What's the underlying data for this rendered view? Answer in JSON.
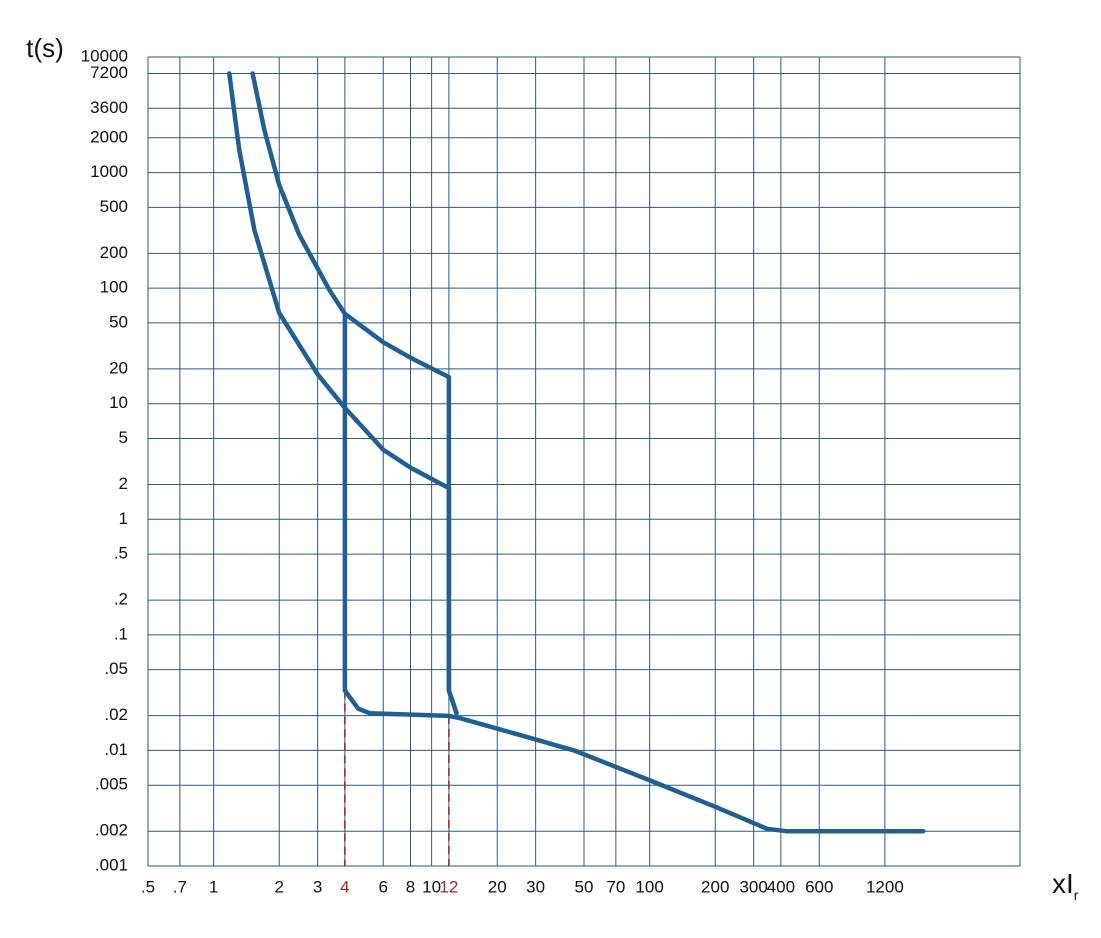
{
  "chart_data": {
    "type": "line",
    "y_label": "t(s)",
    "x_label": "xI",
    "x_label_sub": "r",
    "x_scale": "log",
    "y_scale": "log",
    "grid": true,
    "xlim": [
      0.5,
      5000
    ],
    "ylim": [
      0.001,
      10000
    ],
    "xticks": [
      {
        "value": 0.5,
        "label": ".5"
      },
      {
        "value": 0.7,
        "label": ".7"
      },
      1,
      2,
      3,
      4,
      6,
      8,
      10,
      12,
      20,
      30,
      50,
      70,
      100,
      200,
      300,
      400,
      600,
      1200
    ],
    "yticks": [
      10000,
      7200,
      3600,
      2000,
      1000,
      500,
      200,
      100,
      50,
      20,
      10,
      5,
      2,
      1,
      {
        "value": 0.5,
        "label": ".5"
      },
      {
        "value": 0.2,
        "label": ".2"
      },
      {
        "value": 0.1,
        "label": ".1"
      },
      {
        "value": 0.05,
        "label": ".05"
      },
      {
        "value": 0.02,
        "label": ".02"
      },
      {
        "value": 0.01,
        "label": ".01"
      },
      {
        "value": 0.005,
        "label": ".005"
      },
      {
        "value": 0.002,
        "label": ".002"
      },
      {
        "value": 0.001,
        "label": ".001"
      }
    ],
    "highlight_xticks": [
      4,
      12
    ],
    "highlight_color": "#a3262a",
    "series": [
      {
        "color": "#1f5f94",
        "x": [
          1.18,
          1.31,
          1.54,
          2,
          3,
          4,
          6,
          8,
          12,
          12,
          13
        ],
        "values": [
          7200,
          1580,
          316,
          61,
          18,
          9.2,
          4,
          2.8,
          1.86,
          0.033,
          0.021
        ]
      },
      {
        "color": "#1f5f94",
        "x": [
          1.51,
          1.71,
          2,
          2.47,
          3.4,
          4,
          6,
          8,
          12,
          12,
          13
        ],
        "values": [
          7200,
          2330,
          780,
          290,
          96,
          60,
          34,
          25,
          17,
          0.033,
          0.021
        ]
      },
      {
        "color": "#1f5f94",
        "x": [
          4,
          4,
          4.6,
          5.2,
          12,
          13.5,
          25,
          45,
          98,
          204,
          346,
          425,
          1800
        ],
        "values": [
          60,
          0.033,
          0.023,
          0.021,
          0.0199,
          0.019,
          0.0137,
          0.01,
          0.0056,
          0.0032,
          0.0021,
          0.002,
          0.002
        ]
      }
    ]
  }
}
